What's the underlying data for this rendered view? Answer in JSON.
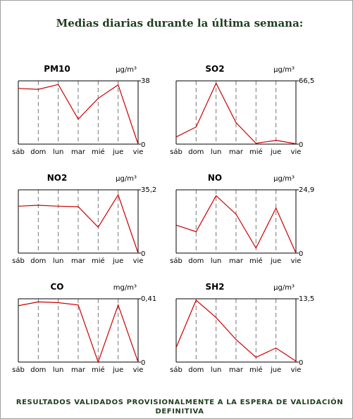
{
  "page": {
    "title": "Medias diarias durante la última semana:",
    "footer": "RESULTADOS VALIDADOS PROVISIONALMENTE A LA ESPERA DE VALIDACIÓN DEFINITIVA"
  },
  "colors": {
    "line": "#cc0000",
    "axis": "#000000",
    "grid": "#777777"
  },
  "chart_data": [
    {
      "type": "line",
      "title": "PM10",
      "unit": "µg/m³",
      "categories": [
        "sáb",
        "dom",
        "lun",
        "mar",
        "mié",
        "jue",
        "vie"
      ],
      "ylim": [
        0,
        38
      ],
      "ymax_label": "38",
      "ymin_label": "0",
      "series": [
        {
          "values": [
            33.5,
            32.9,
            35.8,
            15.0,
            27.5,
            35.6,
            0
          ]
        }
      ]
    },
    {
      "type": "line",
      "title": "SO2",
      "unit": "µg/m³",
      "categories": [
        "sáb",
        "dom",
        "lun",
        "mar",
        "mié",
        "jue",
        "vie"
      ],
      "ylim": [
        0,
        66.5
      ],
      "ymax_label": "66,5",
      "ymin_label": "0",
      "series": [
        {
          "values": [
            7.5,
            18.0,
            64.0,
            22.5,
            0.8,
            4.0,
            0.4
          ]
        }
      ]
    },
    {
      "type": "line",
      "title": "NO2",
      "unit": "µg/m³",
      "categories": [
        "sáb",
        "dom",
        "lun",
        "mar",
        "mié",
        "jue",
        "vie"
      ],
      "ylim": [
        0,
        35.2
      ],
      "ymax_label": "35,2",
      "ymin_label": "0",
      "series": [
        {
          "values": [
            26.1,
            26.6,
            26.1,
            25.8,
            14.4,
            32.4,
            0
          ]
        }
      ]
    },
    {
      "type": "line",
      "title": "NO",
      "unit": "µg/m³",
      "categories": [
        "sáb",
        "dom",
        "lun",
        "mar",
        "mié",
        "jue",
        "vie"
      ],
      "ylim": [
        0,
        24.9
      ],
      "ymax_label": "24,9",
      "ymin_label": "0",
      "series": [
        {
          "values": [
            11.0,
            8.4,
            22.6,
            15.3,
            2.0,
            17.7,
            0
          ]
        }
      ]
    },
    {
      "type": "line",
      "title": "CO",
      "unit": "mg/m³",
      "categories": [
        "sáb",
        "dom",
        "lun",
        "mar",
        "mié",
        "jue",
        "vie"
      ],
      "ylim": [
        0,
        0.41
      ],
      "ymax_label": "0,41",
      "ymin_label": "0",
      "series": [
        {
          "values": [
            0.365,
            0.39,
            0.385,
            0.37,
            0,
            0.37,
            0
          ]
        }
      ]
    },
    {
      "type": "line",
      "title": "SH2",
      "unit": "µg/m³",
      "categories": [
        "sáb",
        "dom",
        "lun",
        "mar",
        "mié",
        "jue",
        "vie"
      ],
      "ylim": [
        0,
        13.5
      ],
      "ymax_label": "13,5",
      "ymin_label": "0",
      "series": [
        {
          "values": [
            3.1,
            13.2,
            9.5,
            4.8,
            1.0,
            3.0,
            0.2
          ]
        }
      ]
    }
  ]
}
